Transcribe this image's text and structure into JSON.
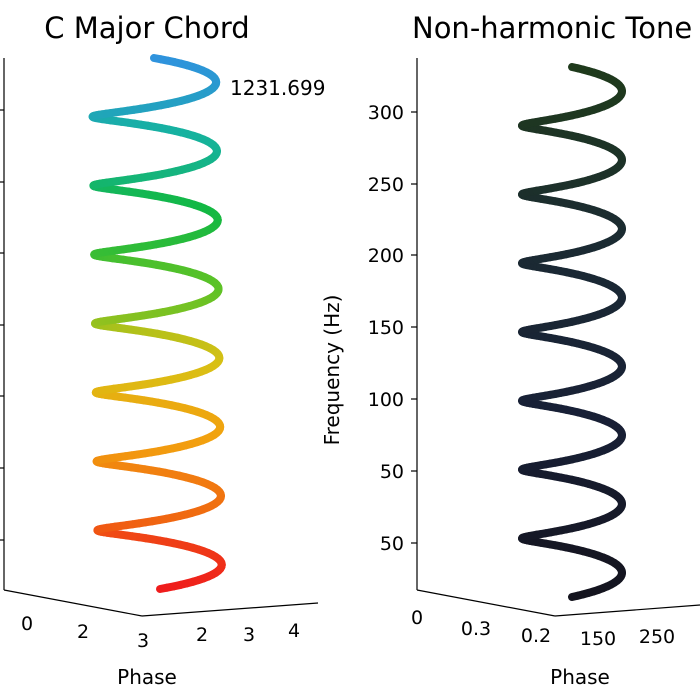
{
  "chart_data": [
    {
      "type": "line",
      "title": "C Major Chord",
      "xlabel": "Phase",
      "ylabel": "",
      "annotation": "1231.699",
      "x_tick_labels": [
        "0",
        "2",
        "3",
        "2",
        "3",
        "4"
      ],
      "y_tick_labels": [],
      "turns": 7.5,
      "color_map": "rainbow",
      "colors": [
        "#ef1c1c",
        "#f06a10",
        "#f2a10f",
        "#d9c014",
        "#5cc227",
        "#13b843",
        "#16b2a0",
        "#2f92de"
      ]
    },
    {
      "type": "line",
      "title": "Non-harmonic Tone",
      "xlabel": "Phase",
      "ylabel": "Frequency (Hz)",
      "x_tick_labels": [
        "0",
        "0.3",
        "0.2",
        "150",
        "250"
      ],
      "y_tick_labels": [
        "50",
        "50",
        "100",
        "150",
        "200",
        "250",
        "300"
      ],
      "turns": 7.5,
      "color_map": "dark",
      "colors": [
        "#14141e",
        "#182036",
        "#1b2a33",
        "#1f3a1c"
      ]
    }
  ]
}
